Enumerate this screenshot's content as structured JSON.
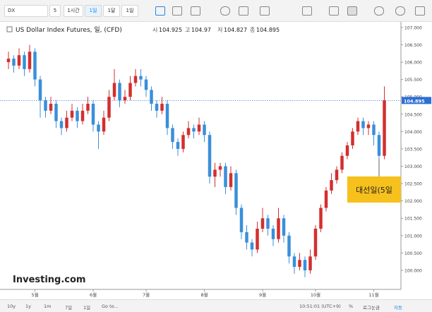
{
  "ui": {
    "symbol": "DX",
    "intervals": [
      "5",
      "1시간",
      "1일",
      "1달",
      "1일"
    ],
    "ranges": [
      "10y",
      "1y",
      "1m",
      "7일",
      "1일"
    ],
    "goto": "Go to...",
    "time": "10:51:01 (UTC+9)",
    "percent": "%",
    "log": "로그눈금",
    "auto": "자동",
    "logo": "Investing.com"
  },
  "chart_data": {
    "type": "candlestick",
    "title": "US Dollar Index Futures, 일, (CFD)",
    "ohlc_header": [
      {
        "label": "시",
        "value": 104.925
      },
      {
        "label": "고",
        "value": 104.97
      },
      {
        "label": "저",
        "value": 104.827
      },
      {
        "label": "종",
        "value": 104.895
      }
    ],
    "last_price": 104.895,
    "annotation": "대선일(5일",
    "up_color": "#d32f2f",
    "down_color": "#3a8fd9",
    "price_line_color": "#2d6fd6",
    "categories": [
      null,
      null,
      null,
      null,
      null,
      "5월",
      null,
      null,
      null,
      null,
      null,
      null,
      null,
      null,
      null,
      null,
      "6월",
      null,
      null,
      null,
      null,
      null,
      null,
      null,
      null,
      null,
      "7월",
      null,
      null,
      null,
      null,
      null,
      null,
      null,
      null,
      null,
      null,
      "8월",
      null,
      null,
      null,
      null,
      null,
      null,
      null,
      null,
      null,
      null,
      "9월",
      null,
      null,
      null,
      null,
      null,
      null,
      null,
      null,
      null,
      "10월",
      null,
      null,
      null,
      null,
      null,
      null,
      null,
      null,
      null,
      null,
      "11월",
      null,
      null
    ],
    "open": [
      106.0,
      106.1,
      105.9,
      106.2,
      105.8,
      106.3,
      105.5,
      104.9,
      104.6,
      104.8,
      104.3,
      104.1,
      104.4,
      104.6,
      104.3,
      104.6,
      104.8,
      104.2,
      104.0,
      104.4,
      105.0,
      105.4,
      104.9,
      105.0,
      105.4,
      105.6,
      105.5,
      105.2,
      104.8,
      104.6,
      104.8,
      104.1,
      103.7,
      103.5,
      103.9,
      104.1,
      104.0,
      104.2,
      103.9,
      102.7,
      102.9,
      103.0,
      102.4,
      102.8,
      101.8,
      101.1,
      100.8,
      100.6,
      101.2,
      101.5,
      101.2,
      100.9,
      101.5,
      101.0,
      100.4,
      100.1,
      100.3,
      100.0,
      100.4,
      101.2,
      101.8,
      102.3,
      102.6,
      102.9,
      103.3,
      103.6,
      104.0,
      104.3,
      104.1,
      104.2,
      103.9,
      103.3
    ],
    "high": [
      106.3,
      106.2,
      106.4,
      106.3,
      106.5,
      106.4,
      105.6,
      105.0,
      105.0,
      104.9,
      104.4,
      104.6,
      104.8,
      104.7,
      104.8,
      105.0,
      104.9,
      104.3,
      104.6,
      105.2,
      105.8,
      105.5,
      105.2,
      105.6,
      105.8,
      105.8,
      105.6,
      105.3,
      104.9,
      105.0,
      104.9,
      104.2,
      103.8,
      104.0,
      104.3,
      104.2,
      104.4,
      104.3,
      104.0,
      103.1,
      103.1,
      103.1,
      103.0,
      102.9,
      101.9,
      101.3,
      100.9,
      101.4,
      101.8,
      101.6,
      101.3,
      101.8,
      101.6,
      101.1,
      100.5,
      100.5,
      100.4,
      100.6,
      101.3,
      101.9,
      102.4,
      102.8,
      103.0,
      103.4,
      103.7,
      104.1,
      104.4,
      104.4,
      104.3,
      104.3,
      104.0,
      105.3
    ],
    "low": [
      105.8,
      105.7,
      105.8,
      105.6,
      105.7,
      105.3,
      104.4,
      104.4,
      104.5,
      104.1,
      103.9,
      104.0,
      104.3,
      104.1,
      104.2,
      104.5,
      104.0,
      103.5,
      103.9,
      104.3,
      104.9,
      104.7,
      104.8,
      104.9,
      105.3,
      105.3,
      105.0,
      104.6,
      104.4,
      104.5,
      103.9,
      103.5,
      103.3,
      103.4,
      103.8,
      103.8,
      103.9,
      103.7,
      102.5,
      102.4,
      102.7,
      102.2,
      102.3,
      101.6,
      100.9,
      100.6,
      100.4,
      100.5,
      101.1,
      101.0,
      100.7,
      100.8,
      100.8,
      100.2,
      99.9,
      100.0,
      99.8,
      99.9,
      100.3,
      101.1,
      101.7,
      102.2,
      102.5,
      102.8,
      103.2,
      103.5,
      103.9,
      103.9,
      103.9,
      103.6,
      102.7,
      103.2
    ],
    "close": [
      106.1,
      105.9,
      106.2,
      105.8,
      106.3,
      105.5,
      104.9,
      104.6,
      104.8,
      104.3,
      104.1,
      104.4,
      104.6,
      104.3,
      104.6,
      104.8,
      104.2,
      104.0,
      104.4,
      105.0,
      105.4,
      104.9,
      105.0,
      105.4,
      105.6,
      105.5,
      105.2,
      104.8,
      104.6,
      104.8,
      104.1,
      103.7,
      103.5,
      103.9,
      104.1,
      104.0,
      104.2,
      103.9,
      102.7,
      102.9,
      103.0,
      102.4,
      102.8,
      101.8,
      101.1,
      100.8,
      100.6,
      101.2,
      101.5,
      101.2,
      100.9,
      101.5,
      101.0,
      100.4,
      100.1,
      100.3,
      100.0,
      100.4,
      101.2,
      101.8,
      102.3,
      102.6,
      102.9,
      103.3,
      103.6,
      104.0,
      104.3,
      104.1,
      104.2,
      103.9,
      103.3,
      104.9
    ],
    "ylim": [
      99.45,
      107.16
    ],
    "yticks": [
      {
        "value": 100,
        "label": "100.000"
      },
      {
        "value": 100.5,
        "label": "100.500"
      },
      {
        "value": 101,
        "label": "101.000"
      },
      {
        "value": 101.5,
        "label": "101.500"
      },
      {
        "value": 102,
        "label": "102.000"
      },
      {
        "value": 102.5,
        "label": "102.500"
      },
      {
        "value": 103,
        "label": "103.000"
      },
      {
        "value": 103.5,
        "label": "103.500"
      },
      {
        "value": 104,
        "label": "104.000"
      },
      {
        "value": 104.5,
        "label": "104.500"
      },
      {
        "value": 105,
        "label": "105.000"
      },
      {
        "value": 105.5,
        "label": "105.500"
      },
      {
        "value": 106,
        "label": "106.000"
      },
      {
        "value": 106.5,
        "label": "106.500"
      },
      {
        "value": 107,
        "label": "107.000"
      }
    ],
    "grid": false
  }
}
